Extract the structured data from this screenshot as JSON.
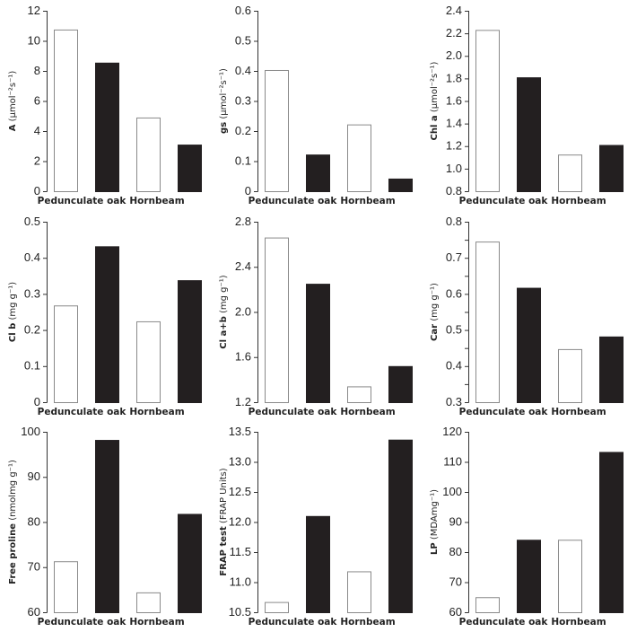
{
  "legend_colors": {
    "control": "#ffffff",
    "treatment": "#231f20",
    "outline": "#8a8a8a",
    "axis": "#333333"
  },
  "chart_data": [
    {
      "type": "bar",
      "ylabel_bold": "A",
      "ylabel_rest": " (µmol⁻²s⁻¹)",
      "ylim": [
        0,
        12
      ],
      "ticks": [
        "0",
        "2",
        "4",
        "6",
        "8",
        "10",
        "12"
      ],
      "tick_values": [
        0,
        2,
        4,
        6,
        8,
        10,
        12
      ],
      "minor_ticks": [],
      "categories": [
        "Pedunculate oak",
        "Hornbeam"
      ],
      "series": [
        {
          "name": "white",
          "values": [
            10.75,
            4.9
          ]
        },
        {
          "name": "black",
          "values": [
            8.55,
            3.1
          ]
        }
      ]
    },
    {
      "type": "bar",
      "ylabel_bold": "gs",
      "ylabel_rest": " (µmol⁻²s⁻¹)",
      "ylim": [
        0,
        0.6
      ],
      "ticks": [
        "0",
        "0.1",
        "0.2",
        "0.3",
        "0.4",
        "0.5",
        "0.6"
      ],
      "tick_values": [
        0,
        0.1,
        0.2,
        0.3,
        0.4,
        0.5,
        0.6
      ],
      "minor_ticks": [],
      "categories": [
        "Pedunculate oak",
        "Hornbeam"
      ],
      "series": [
        {
          "name": "white",
          "values": [
            0.403,
            0.222
          ]
        },
        {
          "name": "black",
          "values": [
            0.122,
            0.042
          ]
        }
      ]
    },
    {
      "type": "bar",
      "ylabel_bold": "Chl a",
      "ylabel_rest": " (µmol⁻²s⁻¹)",
      "ylim": [
        0.8,
        2.4
      ],
      "ticks": [
        "0.8",
        "1.0",
        "1.2",
        "1.4",
        "1.6",
        "1.8",
        "2.0",
        "2.2",
        "2.4"
      ],
      "tick_values": [
        0.8,
        1.0,
        1.2,
        1.4,
        1.6,
        1.8,
        2.0,
        2.2,
        2.4
      ],
      "minor_ticks": [],
      "categories": [
        "Pedunculate oak",
        "Hornbeam"
      ],
      "series": [
        {
          "name": "white",
          "values": [
            2.23,
            1.125
          ]
        },
        {
          "name": "black",
          "values": [
            1.81,
            1.21
          ]
        }
      ]
    },
    {
      "type": "bar",
      "ylabel_bold": "Cl b",
      "ylabel_rest": " (mg g⁻¹)",
      "ylim": [
        0,
        0.5
      ],
      "ticks": [
        "0",
        "0.1",
        "0.2",
        "0.3",
        "0.4",
        "0.5"
      ],
      "tick_values": [
        0,
        0.1,
        0.2,
        0.3,
        0.4,
        0.5
      ],
      "minor_ticks": [],
      "categories": [
        "Pedunculate oak",
        "Hornbeam"
      ],
      "series": [
        {
          "name": "white",
          "values": [
            0.268,
            0.224
          ]
        },
        {
          "name": "black",
          "values": [
            0.432,
            0.338
          ]
        }
      ]
    },
    {
      "type": "bar",
      "ylabel_bold": "Cl a+b",
      "ylabel_rest": " (mg g⁻¹)",
      "ylim": [
        1.2,
        2.8
      ],
      "ticks": [
        "1.2",
        "1.6",
        "2.0",
        "2.4",
        "2.8"
      ],
      "tick_values": [
        1.2,
        1.6,
        2.0,
        2.4,
        2.8
      ],
      "minor_ticks": [],
      "categories": [
        "Pedunculate oak",
        "Hornbeam"
      ],
      "series": [
        {
          "name": "white",
          "values": [
            2.66,
            1.34
          ]
        },
        {
          "name": "black",
          "values": [
            2.25,
            1.52
          ]
        }
      ]
    },
    {
      "type": "bar",
      "ylabel_bold": "Car",
      "ylabel_rest": " (mg g⁻¹)",
      "ylim": [
        0.3,
        0.8
      ],
      "ticks": [
        "0.3",
        "0.4",
        "0.5",
        "0.6",
        "0.7",
        "0.8"
      ],
      "tick_values": [
        0.3,
        0.4,
        0.5,
        0.6,
        0.7,
        0.8
      ],
      "minor_ticks": [
        0.35,
        0.45,
        0.55,
        0.65,
        0.75
      ],
      "categories": [
        "Pedunculate oak",
        "Hornbeam"
      ],
      "series": [
        {
          "name": "white",
          "values": [
            0.745,
            0.447
          ]
        },
        {
          "name": "black",
          "values": [
            0.617,
            0.482
          ]
        }
      ]
    },
    {
      "type": "bar",
      "ylabel_bold": "Free proline",
      "ylabel_rest": " (nmolmg g⁻¹)",
      "ylim": [
        60,
        100
      ],
      "ticks": [
        "60",
        "70",
        "80",
        "90",
        "100"
      ],
      "tick_values": [
        60,
        70,
        80,
        90,
        100
      ],
      "minor_ticks": [],
      "categories": [
        "Pedunculate oak",
        "Hornbeam"
      ],
      "series": [
        {
          "name": "white",
          "values": [
            71.3,
            64.4
          ]
        },
        {
          "name": "black",
          "values": [
            98.2,
            81.8
          ]
        }
      ]
    },
    {
      "type": "bar",
      "ylabel_bold": "FRAP test",
      "ylabel_rest": " (FRAP Units)",
      "ylim": [
        10.5,
        13.5
      ],
      "ticks": [
        "10.5",
        "11.0",
        "11.5",
        "12.0",
        "12.5",
        "13.0",
        "13.5"
      ],
      "tick_values": [
        10.5,
        11.0,
        11.5,
        12.0,
        12.5,
        13.0,
        13.5
      ],
      "minor_ticks": [],
      "categories": [
        "Pedunculate oak",
        "Hornbeam"
      ],
      "series": [
        {
          "name": "white",
          "values": [
            10.67,
            11.18
          ]
        },
        {
          "name": "black",
          "values": [
            12.1,
            13.37
          ]
        }
      ]
    },
    {
      "type": "bar",
      "ylabel_bold": "LP",
      "ylabel_rest": " (MDAmg⁻¹)",
      "ylim": [
        60,
        120
      ],
      "ticks": [
        "60",
        "70",
        "80",
        "90",
        "100",
        "110",
        "120"
      ],
      "tick_values": [
        60,
        70,
        80,
        90,
        100,
        110,
        120
      ],
      "minor_ticks": [],
      "categories": [
        "Pedunculate oak",
        "Hornbeam"
      ],
      "series": [
        {
          "name": "white",
          "values": [
            65,
            84.1
          ]
        },
        {
          "name": "black",
          "values": [
            84.1,
            113.3
          ]
        }
      ]
    }
  ]
}
